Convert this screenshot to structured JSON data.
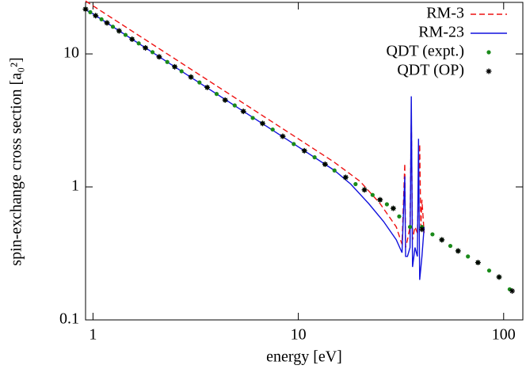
{
  "chart_data": {
    "type": "line",
    "xlabel": "energy [eV]",
    "ylabel": "spin-exchange cross section [a₀²]",
    "xscale": "log",
    "yscale": "log",
    "xlim": [
      0.92,
      124
    ],
    "ylim": [
      0.1,
      24.4
    ],
    "xticks": [
      1,
      10,
      100
    ],
    "yticks": [
      0.1,
      1,
      10
    ],
    "legend": "upper right",
    "series": [
      {
        "name": "RM-3",
        "color": "#ee1111",
        "style": "dashed",
        "x": [
          0.92,
          1,
          2,
          5,
          10,
          15,
          20,
          25,
          30,
          32,
          33,
          33.3,
          34,
          35,
          35.5,
          36,
          36.5,
          37,
          38,
          39,
          39.5,
          40,
          41
        ],
        "values": [
          25,
          23,
          11.5,
          4.6,
          2.3,
          1.53,
          1.1,
          0.75,
          0.5,
          0.37,
          1.5,
          0.35,
          0.4,
          0.5,
          3.3,
          0.4,
          0.45,
          0.5,
          0.45,
          2.1,
          0.5,
          0.8,
          0.45
        ]
      },
      {
        "name": "RM-23",
        "color": "#1111dd",
        "style": "solid",
        "x": [
          0.92,
          1,
          2,
          5,
          10,
          15,
          18,
          22,
          26,
          30,
          32,
          33,
          33.3,
          34,
          35,
          35.5,
          36,
          37,
          38,
          38.5,
          39,
          40,
          41
        ],
        "values": [
          21.5,
          20,
          10,
          4,
          2,
          1.33,
          1.05,
          0.75,
          0.55,
          0.4,
          0.32,
          1.2,
          0.3,
          0.3,
          0.35,
          4.8,
          0.25,
          0.35,
          0.3,
          2.3,
          0.2,
          0.3,
          0.5
        ]
      },
      {
        "name": "QDT (expt.)",
        "color": "#1a8a1a",
        "style": "dot",
        "x": [
          0.92,
          0.97,
          1.03,
          1.1,
          1.17,
          1.25,
          1.34,
          1.44,
          1.55,
          1.67,
          1.8,
          1.95,
          2.1,
          2.3,
          2.5,
          2.7,
          3.0,
          3.3,
          3.6,
          4.0,
          4.4,
          4.9,
          5.4,
          6.0,
          6.7,
          7.5,
          8.4,
          9.5,
          10.7,
          12,
          13.5,
          15,
          17,
          19,
          21,
          23,
          25,
          27,
          29,
          31,
          35,
          40,
          45,
          50,
          55,
          60,
          67,
          75,
          85,
          95,
          107
        ],
        "values": [
          21.7,
          20.6,
          19.4,
          18.2,
          17.1,
          16,
          14.9,
          13.9,
          12.9,
          12,
          11.1,
          10.3,
          9.5,
          8.7,
          8,
          7.4,
          6.7,
          6.1,
          5.6,
          5,
          4.5,
          4.1,
          3.7,
          3.3,
          3.0,
          2.7,
          2.4,
          2.1,
          1.87,
          1.67,
          1.48,
          1.33,
          1.18,
          1.05,
          0.95,
          0.87,
          0.8,
          0.74,
          0.69,
          0.6,
          0.5,
          0.5,
          0.44,
          0.4,
          0.36,
          0.33,
          0.3,
          0.27,
          0.235,
          0.21,
          0.17
        ]
      },
      {
        "name": "QDT (OP)",
        "color": "#000000",
        "style": "star",
        "x": [
          0.92,
          1.03,
          1.17,
          1.34,
          1.55,
          1.8,
          2.1,
          2.5,
          3.0,
          3.6,
          4.4,
          5.4,
          6.7,
          8.4,
          10.7,
          13.5,
          17,
          21,
          25,
          29,
          40,
          50,
          60,
          75,
          95,
          110
        ],
        "values": [
          21.7,
          19.4,
          17.1,
          14.9,
          12.9,
          11.1,
          9.5,
          8,
          6.7,
          5.6,
          4.5,
          3.7,
          3.0,
          2.4,
          1.87,
          1.48,
          1.18,
          0.95,
          0.8,
          0.69,
          0.48,
          0.4,
          0.33,
          0.27,
          0.21,
          0.165
        ]
      }
    ]
  }
}
